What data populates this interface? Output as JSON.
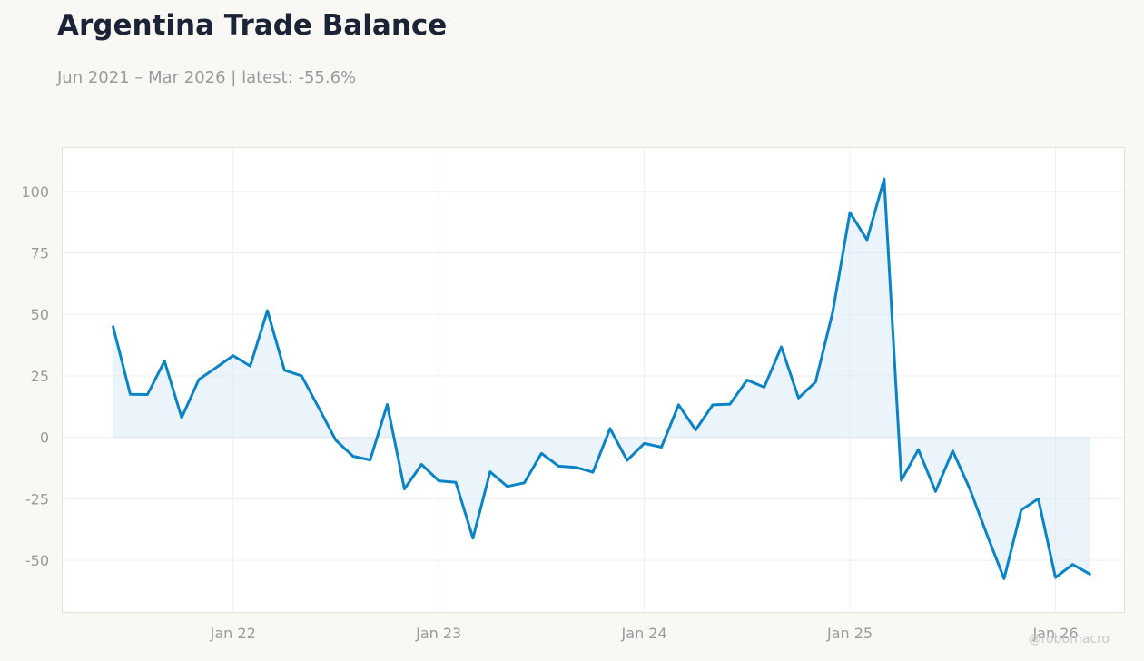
{
  "header": {
    "title": "Argentina Trade Balance",
    "subtitle": "Jun 2021 – Mar 2026 | latest: -55.6%"
  },
  "watermark": "@robomacro",
  "colors": {
    "line": "#0a84c6",
    "fill": "#daeaf7",
    "background": "#f9f8f5",
    "plot_background": "#ffffff",
    "grid": "#efefef",
    "tick_text": "#9a9a9a"
  },
  "chart_data": {
    "type": "area",
    "title": "Argentina Trade Balance",
    "subtitle": "Jun 2021 – Mar 2026 | latest: -55.6%",
    "xlabel": "",
    "ylabel": "",
    "grid": true,
    "legend": "none",
    "ylim": [
      -71,
      118
    ],
    "xlim": [
      "2021-03-01",
      "2026-05-01"
    ],
    "yticks": [
      -50,
      -25,
      0,
      25,
      50,
      75,
      100
    ],
    "ytick_labels": [
      "-50",
      "-25",
      "0",
      "25",
      "50",
      "75",
      "100"
    ],
    "xticks": [
      "2022-01",
      "2023-01",
      "2024-01",
      "2025-01",
      "2026-01"
    ],
    "xtick_labels": [
      "Jan 22",
      "Jan 23",
      "Jan 24",
      "Jan 25",
      "Jan 26"
    ],
    "series": [
      {
        "x": [
          "2021-06",
          "2021-07",
          "2021-08",
          "2021-09",
          "2021-10",
          "2021-11",
          "2021-12",
          "2022-01",
          "2022-02",
          "2022-03",
          "2022-04",
          "2022-05",
          "2022-06",
          "2022-07",
          "2022-08",
          "2022-09",
          "2022-10",
          "2022-11",
          "2022-12",
          "2023-01",
          "2023-02",
          "2023-03",
          "2023-04",
          "2023-05",
          "2023-06",
          "2023-07",
          "2023-08",
          "2023-09",
          "2023-10",
          "2023-11",
          "2023-12",
          "2024-01",
          "2024-02",
          "2024-03",
          "2024-04",
          "2024-05",
          "2024-06",
          "2024-07",
          "2024-08",
          "2024-09",
          "2024-10",
          "2024-11",
          "2024-12",
          "2025-01",
          "2025-02",
          "2025-03",
          "2025-04",
          "2025-05",
          "2025-06",
          "2025-07",
          "2025-08",
          "2025-09",
          "2025-10",
          "2025-11",
          "2025-12",
          "2026-01",
          "2026-02",
          "2026-03"
        ],
        "values": [
          45,
          17.5,
          17.4,
          31,
          8,
          23.5,
          28.3,
          33.2,
          29,
          51.5,
          27.3,
          25,
          12,
          -1.2,
          -7.7,
          -9.2,
          13.3,
          -21,
          -11,
          -17.7,
          -18.3,
          -41,
          -14,
          -20,
          -18.5,
          -6.5,
          -11.7,
          -12.2,
          -14.2,
          3.6,
          -9.4,
          -2.5,
          -4,
          13.2,
          3,
          13.2,
          13.5,
          23.3,
          20.4,
          36.8,
          16,
          22.5,
          51,
          91.4,
          80.3,
          105,
          -17.5,
          -5,
          -22,
          -5.5,
          -21,
          -39.5,
          -57.5,
          -29.5,
          -25,
          -57,
          -51.7,
          -55.6
        ]
      }
    ]
  }
}
